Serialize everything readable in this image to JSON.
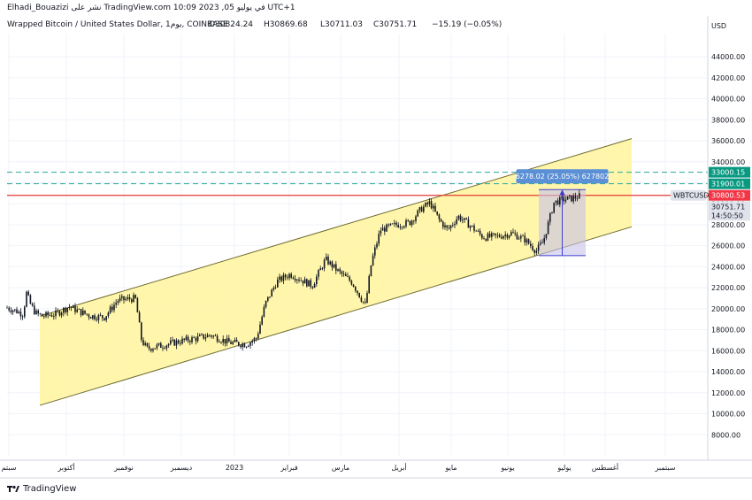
{
  "header": {
    "publish_line": "Elhadi_Bouazizi نشر على TradingView.com في يوليو 05, 2023 10:09 UTC+1",
    "symbol_title": "Wrapped Bitcoin / United States Dollar, 1يوم, COINBASE",
    "open": "O30824.24",
    "high": "H30869.68",
    "low": "L30711.03",
    "close": "C30751.71",
    "change": "−15.19 (−0.05%)"
  },
  "footer": {
    "brand": "TradingView"
  },
  "colors": {
    "channel_fill": "#fff59d",
    "channel_line": "#6d6a2f",
    "red_line": "#e53935",
    "teal_dash": "#26a69a",
    "measure_fill": "#c7c2e8",
    "measure_border": "#3d3fd1",
    "measure_label_bg": "#5b8fd6",
    "candle": "#131722",
    "tag_green": "#089981",
    "tag_red": "#f23645",
    "tag_gray": "#e0e3eb"
  },
  "chart_data": {
    "type": "candlestick",
    "symbol": "WBTCUSD",
    "currency": "USD",
    "y_ticks": [
      "44000.00",
      "42000.00",
      "40000.00",
      "38000.00",
      "36000.00",
      "34000.00",
      "32000.00",
      "30000.00",
      "28000.00",
      "26000.00",
      "24000.00",
      "22000.00",
      "20000.00",
      "18000.00",
      "16000.00",
      "14000.00",
      "12000.00",
      "10000.00",
      "8000.00"
    ],
    "x_ticks": [
      "سبتم",
      "أكتوبر",
      "نوفمبر",
      "ديسمبر",
      "2023",
      "فبراير",
      "مارس",
      "أبريل",
      "مايو",
      "يونيو",
      "يوليو",
      "أغسطس",
      "سبتمبر"
    ],
    "ylim": [
      6000,
      46200
    ],
    "close_path": [
      {
        "t": 0,
        "v": 20100
      },
      {
        "t": 10,
        "v": 19800
      },
      {
        "t": 18,
        "v": 19500
      },
      {
        "t": 22,
        "v": 21500
      },
      {
        "t": 26,
        "v": 20500
      },
      {
        "t": 32,
        "v": 19600
      },
      {
        "t": 40,
        "v": 19300
      },
      {
        "t": 55,
        "v": 19500
      },
      {
        "t": 70,
        "v": 20200
      },
      {
        "t": 80,
        "v": 19800
      },
      {
        "t": 95,
        "v": 19300
      },
      {
        "t": 110,
        "v": 19200
      },
      {
        "t": 125,
        "v": 20800
      },
      {
        "t": 145,
        "v": 21000
      },
      {
        "t": 152,
        "v": 17000
      },
      {
        "t": 158,
        "v": 16200
      },
      {
        "t": 175,
        "v": 16500
      },
      {
        "t": 195,
        "v": 16900
      },
      {
        "t": 215,
        "v": 17200
      },
      {
        "t": 230,
        "v": 17500
      },
      {
        "t": 250,
        "v": 16800
      },
      {
        "t": 270,
        "v": 16600
      },
      {
        "t": 282,
        "v": 17200
      },
      {
        "t": 292,
        "v": 20500
      },
      {
        "t": 305,
        "v": 22600
      },
      {
        "t": 320,
        "v": 23300
      },
      {
        "t": 345,
        "v": 22200
      },
      {
        "t": 360,
        "v": 24700
      },
      {
        "t": 375,
        "v": 23500
      },
      {
        "t": 390,
        "v": 22500
      },
      {
        "t": 405,
        "v": 20300
      },
      {
        "t": 412,
        "v": 24500
      },
      {
        "t": 422,
        "v": 27500
      },
      {
        "t": 440,
        "v": 28000
      },
      {
        "t": 455,
        "v": 28200
      },
      {
        "t": 468,
        "v": 29500
      },
      {
        "t": 478,
        "v": 30100
      },
      {
        "t": 488,
        "v": 28500
      },
      {
        "t": 498,
        "v": 27500
      },
      {
        "t": 510,
        "v": 28800
      },
      {
        "t": 525,
        "v": 27800
      },
      {
        "t": 538,
        "v": 26800
      },
      {
        "t": 555,
        "v": 26900
      },
      {
        "t": 570,
        "v": 27200
      },
      {
        "t": 585,
        "v": 26600
      },
      {
        "t": 598,
        "v": 25500
      },
      {
        "t": 606,
        "v": 26400
      },
      {
        "t": 612,
        "v": 28200
      },
      {
        "t": 618,
        "v": 30100
      },
      {
        "t": 628,
        "v": 30400
      },
      {
        "t": 638,
        "v": 30500
      },
      {
        "t": 648,
        "v": 30751
      }
    ],
    "channel": {
      "upper": [
        {
          "t": 37,
          "v": 19300
        },
        {
          "t": 706,
          "v": 36200
        }
      ],
      "lower": [
        {
          "t": 37,
          "v": 10800
        },
        {
          "t": 706,
          "v": 27800
        }
      ],
      "fill_start": 37,
      "fill_end": 706
    },
    "horizontal_lines": [
      {
        "value": 30800.53,
        "label": "30800.53",
        "style": "solid",
        "color": "red"
      },
      {
        "value": 31900.01,
        "label": "31900.01",
        "style": "dashed",
        "color": "teal"
      },
      {
        "value": 33000.15,
        "label": "33000.15",
        "style": "dashed",
        "color": "teal"
      }
    ],
    "price_tag": {
      "symbol": "WBTCUSD",
      "price": "30751.71",
      "countdown": "14:50:50"
    },
    "measure": {
      "t_start": 601,
      "t_end": 654,
      "v_low": 25060,
      "v_high": 31350,
      "label": "6278.02 (25.05%) 627802"
    }
  }
}
